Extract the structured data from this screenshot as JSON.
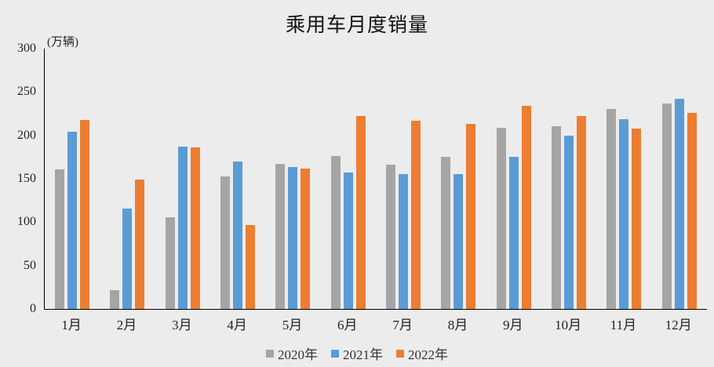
{
  "chart": {
    "title": "乘用车月度销量",
    "unit": "(万辆)"
  },
  "chart_data": {
    "type": "bar",
    "title": "乘用车月度销量",
    "ylabel": "(万辆)",
    "xlabel": "",
    "categories": [
      "1月",
      "2月",
      "3月",
      "4月",
      "5月",
      "6月",
      "7月",
      "8月",
      "9月",
      "10月",
      "11月",
      "12月"
    ],
    "series": [
      {
        "name": "2020年",
        "color": "#a5a5a5",
        "values": [
          161,
          22,
          106,
          153,
          167,
          176,
          166,
          175,
          209,
          211,
          230,
          237
        ]
      },
      {
        "name": "2021年",
        "color": "#5b9bd5",
        "values": [
          204,
          116,
          187,
          170,
          164,
          157,
          155,
          155,
          175,
          200,
          219,
          242
        ]
      },
      {
        "name": "2022年",
        "color": "#ed7d31",
        "values": [
          218,
          149,
          186,
          97,
          162,
          222,
          217,
          213,
          234,
          222,
          208,
          226
        ]
      }
    ],
    "ylim": [
      0,
      300
    ],
    "yticks": [
      0,
      50,
      100,
      150,
      200,
      250,
      300
    ],
    "grid": false,
    "legend_position": "bottom",
    "background_color": "#ececec",
    "axis_color": "#000000"
  }
}
